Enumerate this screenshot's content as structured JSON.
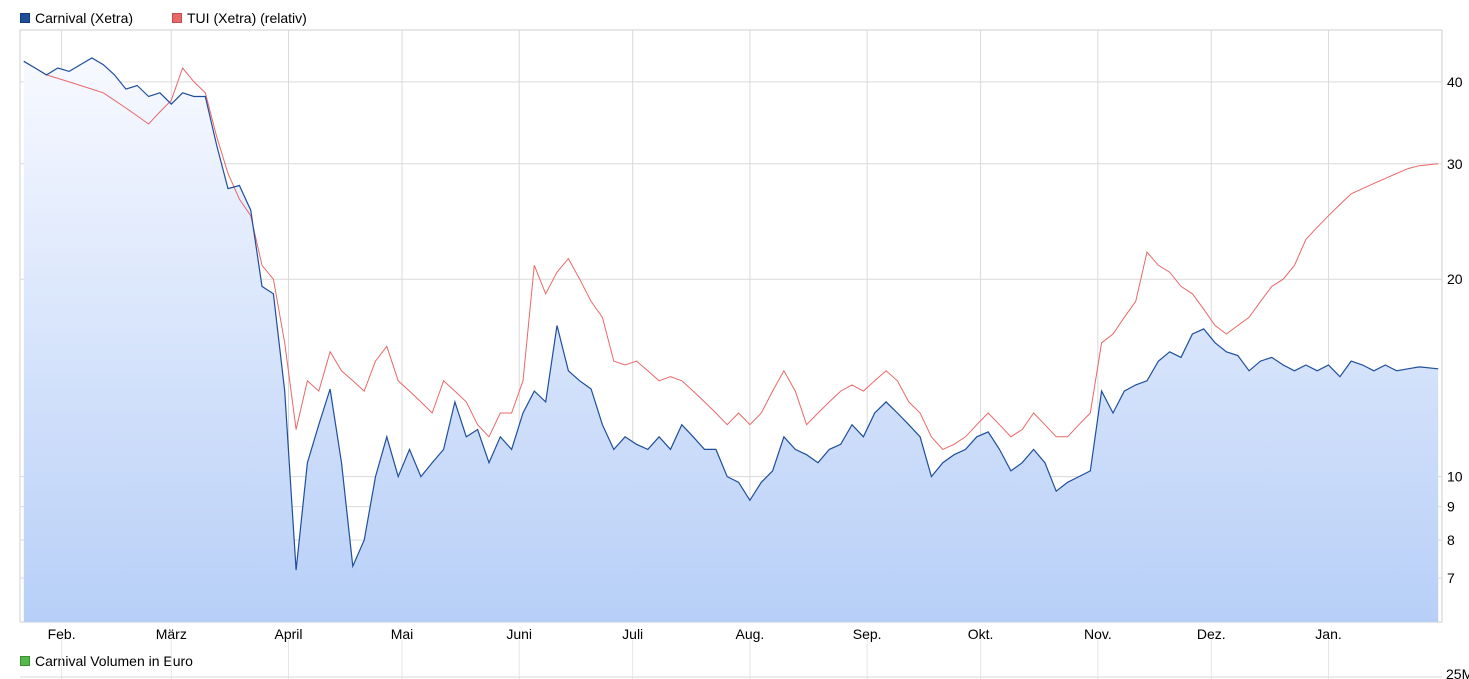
{
  "legend": {
    "carnival": "Carnival (Xetra)",
    "tui": "TUI (Xetra) (relativ)",
    "volume": "Carnival Volumen in Euro"
  },
  "colors": {
    "carnival": "#1f4e9b",
    "tui": "#e8686a",
    "volume": "#55b94a",
    "area_top": "#f7f9ff",
    "area_bottom": "#b7cff7",
    "grid": "#dadada"
  },
  "volume_axis_label": "25M",
  "chart_data": {
    "type": "line",
    "y_scale": "log",
    "ylim": [
      6,
      48
    ],
    "y_ticks": [
      7,
      8,
      9,
      10,
      20,
      30,
      40
    ],
    "x_month_labels": [
      "Feb.",
      "März",
      "April",
      "Mai",
      "Juni",
      "Juli",
      "Aug.",
      "Sep.",
      "Okt.",
      "Nov.",
      "Dez.",
      "Jan."
    ],
    "x_range": [
      "2020-01-21",
      "2021-01-31"
    ],
    "series": [
      {
        "name": "Carnival (Xetra)",
        "points": [
          [
            "2020-01-22",
            43.0
          ],
          [
            "2020-01-25",
            42.0
          ],
          [
            "2020-01-28",
            41.0
          ],
          [
            "2020-01-31",
            42.0
          ],
          [
            "2020-02-03",
            41.5
          ],
          [
            "2020-02-06",
            42.5
          ],
          [
            "2020-02-09",
            43.5
          ],
          [
            "2020-02-12",
            42.5
          ],
          [
            "2020-02-15",
            41.0
          ],
          [
            "2020-02-18",
            39.0
          ],
          [
            "2020-02-21",
            39.5
          ],
          [
            "2020-02-24",
            38.0
          ],
          [
            "2020-02-27",
            38.5
          ],
          [
            "2020-03-01",
            37.0
          ],
          [
            "2020-03-04",
            38.5
          ],
          [
            "2020-03-07",
            38.0
          ],
          [
            "2020-03-10",
            38.0
          ],
          [
            "2020-03-13",
            32.0
          ],
          [
            "2020-03-16",
            27.5
          ],
          [
            "2020-03-19",
            27.8
          ],
          [
            "2020-03-22",
            25.5
          ],
          [
            "2020-03-25",
            19.5
          ],
          [
            "2020-03-28",
            19.0
          ],
          [
            "2020-03-31",
            13.5
          ],
          [
            "2020-04-03",
            7.2
          ],
          [
            "2020-04-06",
            10.5
          ],
          [
            "2020-04-09",
            12.0
          ],
          [
            "2020-04-12",
            13.6
          ],
          [
            "2020-04-15",
            10.5
          ],
          [
            "2020-04-18",
            7.3
          ],
          [
            "2020-04-21",
            8.0
          ],
          [
            "2020-04-24",
            10.0
          ],
          [
            "2020-04-27",
            11.5
          ],
          [
            "2020-04-30",
            10.0
          ],
          [
            "2020-05-03",
            11.0
          ],
          [
            "2020-05-06",
            10.0
          ],
          [
            "2020-05-09",
            10.5
          ],
          [
            "2020-05-12",
            11.0
          ],
          [
            "2020-05-15",
            13.0
          ],
          [
            "2020-05-18",
            11.5
          ],
          [
            "2020-05-21",
            11.8
          ],
          [
            "2020-05-24",
            10.5
          ],
          [
            "2020-05-27",
            11.5
          ],
          [
            "2020-05-30",
            11.0
          ],
          [
            "2020-06-02",
            12.5
          ],
          [
            "2020-06-05",
            13.5
          ],
          [
            "2020-06-08",
            13.0
          ],
          [
            "2020-06-11",
            17.0
          ],
          [
            "2020-06-14",
            14.5
          ],
          [
            "2020-06-17",
            14.0
          ],
          [
            "2020-06-20",
            13.6
          ],
          [
            "2020-06-23",
            12.0
          ],
          [
            "2020-06-26",
            11.0
          ],
          [
            "2020-06-29",
            11.5
          ],
          [
            "2020-07-02",
            11.2
          ],
          [
            "2020-07-05",
            11.0
          ],
          [
            "2020-07-08",
            11.5
          ],
          [
            "2020-07-11",
            11.0
          ],
          [
            "2020-07-14",
            12.0
          ],
          [
            "2020-07-17",
            11.5
          ],
          [
            "2020-07-20",
            11.0
          ],
          [
            "2020-07-23",
            11.0
          ],
          [
            "2020-07-26",
            10.0
          ],
          [
            "2020-07-29",
            9.8
          ],
          [
            "2020-08-01",
            9.2
          ],
          [
            "2020-08-04",
            9.8
          ],
          [
            "2020-08-07",
            10.2
          ],
          [
            "2020-08-10",
            11.5
          ],
          [
            "2020-08-13",
            11.0
          ],
          [
            "2020-08-16",
            10.8
          ],
          [
            "2020-08-19",
            10.5
          ],
          [
            "2020-08-22",
            11.0
          ],
          [
            "2020-08-25",
            11.2
          ],
          [
            "2020-08-28",
            12.0
          ],
          [
            "2020-08-31",
            11.5
          ],
          [
            "2020-09-03",
            12.5
          ],
          [
            "2020-09-06",
            13.0
          ],
          [
            "2020-09-09",
            12.5
          ],
          [
            "2020-09-12",
            12.0
          ],
          [
            "2020-09-15",
            11.5
          ],
          [
            "2020-09-18",
            10.0
          ],
          [
            "2020-09-21",
            10.5
          ],
          [
            "2020-09-24",
            10.8
          ],
          [
            "2020-09-27",
            11.0
          ],
          [
            "2020-09-30",
            11.5
          ],
          [
            "2020-10-03",
            11.7
          ],
          [
            "2020-10-06",
            11.0
          ],
          [
            "2020-10-09",
            10.2
          ],
          [
            "2020-10-12",
            10.5
          ],
          [
            "2020-10-15",
            11.0
          ],
          [
            "2020-10-18",
            10.5
          ],
          [
            "2020-10-21",
            9.5
          ],
          [
            "2020-10-24",
            9.8
          ],
          [
            "2020-10-27",
            10.0
          ],
          [
            "2020-10-30",
            10.2
          ],
          [
            "2020-11-02",
            13.5
          ],
          [
            "2020-11-05",
            12.5
          ],
          [
            "2020-11-08",
            13.5
          ],
          [
            "2020-11-11",
            13.8
          ],
          [
            "2020-11-14",
            14.0
          ],
          [
            "2020-11-17",
            15.0
          ],
          [
            "2020-11-20",
            15.5
          ],
          [
            "2020-11-23",
            15.2
          ],
          [
            "2020-11-26",
            16.5
          ],
          [
            "2020-11-29",
            16.8
          ],
          [
            "2020-12-02",
            16.0
          ],
          [
            "2020-12-05",
            15.5
          ],
          [
            "2020-12-08",
            15.3
          ],
          [
            "2020-12-11",
            14.5
          ],
          [
            "2020-12-14",
            15.0
          ],
          [
            "2020-12-17",
            15.2
          ],
          [
            "2020-12-20",
            14.8
          ],
          [
            "2020-12-23",
            14.5
          ],
          [
            "2020-12-26",
            14.8
          ],
          [
            "2020-12-29",
            14.5
          ],
          [
            "2021-01-01",
            14.8
          ],
          [
            "2021-01-04",
            14.2
          ],
          [
            "2021-01-07",
            15.0
          ],
          [
            "2021-01-10",
            14.8
          ],
          [
            "2021-01-13",
            14.5
          ],
          [
            "2021-01-16",
            14.8
          ],
          [
            "2021-01-19",
            14.5
          ],
          [
            "2021-01-22",
            14.6
          ],
          [
            "2021-01-25",
            14.7
          ],
          [
            "2021-01-30",
            14.6
          ]
        ]
      },
      {
        "name": "TUI (Xetra) (relativ)",
        "points": [
          [
            "2020-01-22",
            43.0
          ],
          [
            "2020-01-25",
            42.0
          ],
          [
            "2020-01-28",
            41.0
          ],
          [
            "2020-01-31",
            40.5
          ],
          [
            "2020-02-03",
            40.0
          ],
          [
            "2020-02-06",
            39.5
          ],
          [
            "2020-02-09",
            39.0
          ],
          [
            "2020-02-12",
            38.5
          ],
          [
            "2020-02-15",
            37.5
          ],
          [
            "2020-02-18",
            36.5
          ],
          [
            "2020-02-21",
            35.5
          ],
          [
            "2020-02-24",
            34.5
          ],
          [
            "2020-02-27",
            36.0
          ],
          [
            "2020-03-01",
            37.5
          ],
          [
            "2020-03-04",
            42.0
          ],
          [
            "2020-03-07",
            40.0
          ],
          [
            "2020-03-10",
            38.5
          ],
          [
            "2020-03-13",
            33.0
          ],
          [
            "2020-03-16",
            29.0
          ],
          [
            "2020-03-19",
            26.5
          ],
          [
            "2020-03-22",
            25.0
          ],
          [
            "2020-03-25",
            21.0
          ],
          [
            "2020-03-28",
            20.0
          ],
          [
            "2020-03-31",
            16.0
          ],
          [
            "2020-04-03",
            11.8
          ],
          [
            "2020-04-06",
            14.0
          ],
          [
            "2020-04-09",
            13.5
          ],
          [
            "2020-04-12",
            15.5
          ],
          [
            "2020-04-15",
            14.5
          ],
          [
            "2020-04-18",
            14.0
          ],
          [
            "2020-04-21",
            13.5
          ],
          [
            "2020-04-24",
            15.0
          ],
          [
            "2020-04-27",
            15.8
          ],
          [
            "2020-04-30",
            14.0
          ],
          [
            "2020-05-03",
            13.5
          ],
          [
            "2020-05-06",
            13.0
          ],
          [
            "2020-05-09",
            12.5
          ],
          [
            "2020-05-12",
            14.0
          ],
          [
            "2020-05-15",
            13.5
          ],
          [
            "2020-05-18",
            13.0
          ],
          [
            "2020-05-21",
            12.0
          ],
          [
            "2020-05-24",
            11.5
          ],
          [
            "2020-05-27",
            12.5
          ],
          [
            "2020-05-30",
            12.5
          ],
          [
            "2020-06-02",
            14.0
          ],
          [
            "2020-06-05",
            21.0
          ],
          [
            "2020-06-08",
            19.0
          ],
          [
            "2020-06-11",
            20.5
          ],
          [
            "2020-06-14",
            21.5
          ],
          [
            "2020-06-17",
            20.0
          ],
          [
            "2020-06-20",
            18.5
          ],
          [
            "2020-06-23",
            17.5
          ],
          [
            "2020-06-26",
            15.0
          ],
          [
            "2020-06-29",
            14.8
          ],
          [
            "2020-07-02",
            15.0
          ],
          [
            "2020-07-05",
            14.5
          ],
          [
            "2020-07-08",
            14.0
          ],
          [
            "2020-07-11",
            14.2
          ],
          [
            "2020-07-14",
            14.0
          ],
          [
            "2020-07-17",
            13.5
          ],
          [
            "2020-07-20",
            13.0
          ],
          [
            "2020-07-23",
            12.5
          ],
          [
            "2020-07-26",
            12.0
          ],
          [
            "2020-07-29",
            12.5
          ],
          [
            "2020-08-01",
            12.0
          ],
          [
            "2020-08-04",
            12.5
          ],
          [
            "2020-08-07",
            13.5
          ],
          [
            "2020-08-10",
            14.5
          ],
          [
            "2020-08-13",
            13.5
          ],
          [
            "2020-08-16",
            12.0
          ],
          [
            "2020-08-19",
            12.5
          ],
          [
            "2020-08-22",
            13.0
          ],
          [
            "2020-08-25",
            13.5
          ],
          [
            "2020-08-28",
            13.8
          ],
          [
            "2020-08-31",
            13.5
          ],
          [
            "2020-09-03",
            14.0
          ],
          [
            "2020-09-06",
            14.5
          ],
          [
            "2020-09-09",
            14.0
          ],
          [
            "2020-09-12",
            13.0
          ],
          [
            "2020-09-15",
            12.5
          ],
          [
            "2020-09-18",
            11.5
          ],
          [
            "2020-09-21",
            11.0
          ],
          [
            "2020-09-24",
            11.2
          ],
          [
            "2020-09-27",
            11.5
          ],
          [
            "2020-09-30",
            12.0
          ],
          [
            "2020-10-03",
            12.5
          ],
          [
            "2020-10-06",
            12.0
          ],
          [
            "2020-10-09",
            11.5
          ],
          [
            "2020-10-12",
            11.8
          ],
          [
            "2020-10-15",
            12.5
          ],
          [
            "2020-10-18",
            12.0
          ],
          [
            "2020-10-21",
            11.5
          ],
          [
            "2020-10-24",
            11.5
          ],
          [
            "2020-10-27",
            12.0
          ],
          [
            "2020-10-30",
            12.5
          ],
          [
            "2020-11-02",
            16.0
          ],
          [
            "2020-11-05",
            16.5
          ],
          [
            "2020-11-08",
            17.5
          ],
          [
            "2020-11-11",
            18.5
          ],
          [
            "2020-11-14",
            22.0
          ],
          [
            "2020-11-17",
            21.0
          ],
          [
            "2020-11-20",
            20.5
          ],
          [
            "2020-11-23",
            19.5
          ],
          [
            "2020-11-26",
            19.0
          ],
          [
            "2020-11-29",
            18.0
          ],
          [
            "2020-12-02",
            17.0
          ],
          [
            "2020-12-05",
            16.5
          ],
          [
            "2020-12-08",
            17.0
          ],
          [
            "2020-12-11",
            17.5
          ],
          [
            "2020-12-14",
            18.5
          ],
          [
            "2020-12-17",
            19.5
          ],
          [
            "2020-12-20",
            20.0
          ],
          [
            "2020-12-23",
            21.0
          ],
          [
            "2020-12-26",
            23.0
          ],
          [
            "2020-12-29",
            24.0
          ],
          [
            "2021-01-01",
            25.0
          ],
          [
            "2021-01-04",
            26.0
          ],
          [
            "2021-01-07",
            27.0
          ],
          [
            "2021-01-10",
            27.5
          ],
          [
            "2021-01-13",
            28.0
          ],
          [
            "2021-01-16",
            28.5
          ],
          [
            "2021-01-19",
            29.0
          ],
          [
            "2021-01-22",
            29.5
          ],
          [
            "2021-01-25",
            29.8
          ],
          [
            "2021-01-30",
            30.0
          ]
        ]
      }
    ]
  }
}
